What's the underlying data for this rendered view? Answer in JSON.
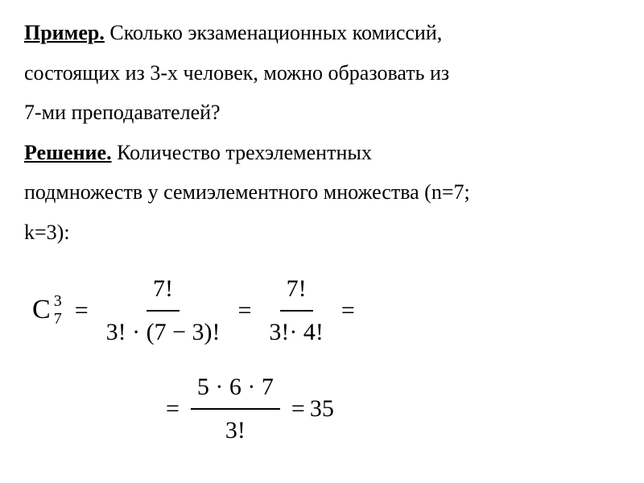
{
  "text": {
    "example_label": "Пример.",
    "example_text_1": " Сколько экзаменационных комиссий,",
    "example_text_2": "состоящих из 3-х человек, можно образовать из",
    "example_text_3": "7-ми преподавателей?",
    "solution_label": "Решение.",
    "solution_text_1": " Количество трехэлементных",
    "solution_text_2": "подмножеств у семиэлементного множества (n=7;",
    "solution_text_3": "k=3):"
  },
  "formula": {
    "symbol": "C",
    "superscript": "3",
    "subscript": "7",
    "eq": "=",
    "frac1_num": "7!",
    "frac1_den": "3! · (7 − 3)!",
    "frac2_num": "7!",
    "frac2_den": "3!· 4!",
    "frac3_num": "5 · 6 · 7",
    "frac3_den": "3!",
    "result": "35"
  },
  "style": {
    "background_color": "#ffffff",
    "text_color": "#000000",
    "body_fontsize": 26,
    "formula_fontsize": 30,
    "font_family": "Times New Roman"
  }
}
